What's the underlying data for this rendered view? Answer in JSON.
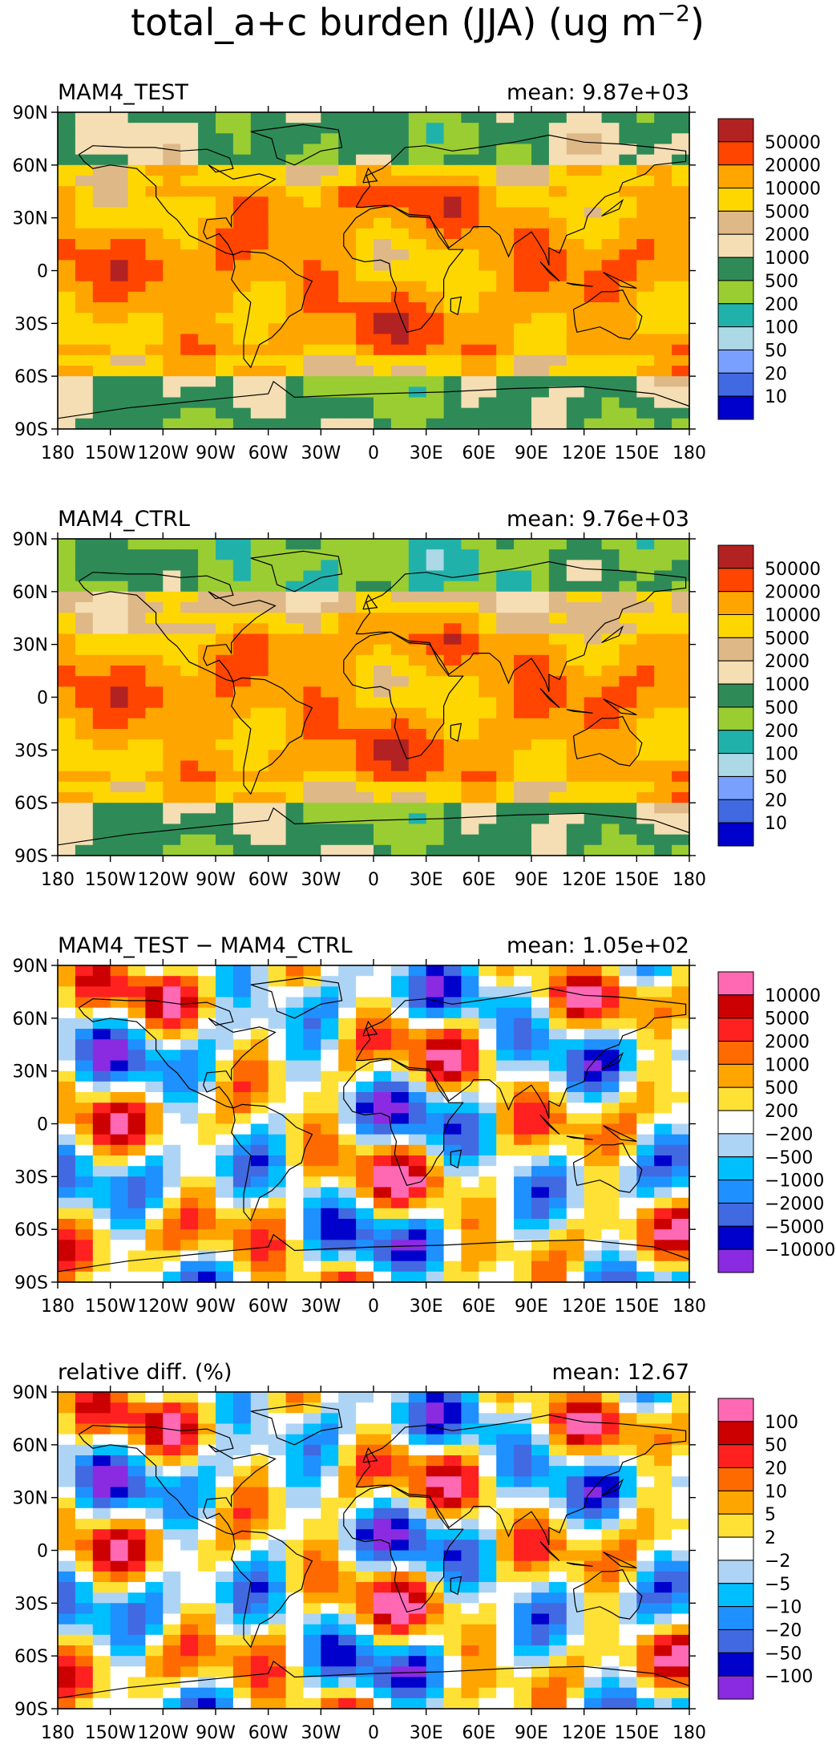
{
  "figure": {
    "title": "total_a+c burden (JJA) (ug m",
    "title_superscript": "−2",
    "title_close": ")"
  },
  "axes": {
    "lat_ticks": [
      "90N",
      "60N",
      "30N",
      "0",
      "30S",
      "60S",
      "90S"
    ],
    "lon_ticks": [
      "180",
      "150W",
      "120W",
      "90W",
      "60W",
      "30W",
      "0",
      "30E",
      "60E",
      "90E",
      "120E",
      "150E",
      "180"
    ]
  },
  "chart_data": [
    {
      "type": "heatmap",
      "title": "MAM4_TEST",
      "stat_label": "mean:",
      "stat_value": "9.87e+03",
      "xlim": [
        -180,
        180
      ],
      "ylim": [
        -90,
        90
      ],
      "colorbar": {
        "levels": [
          "50000",
          "20000",
          "10000",
          "5000",
          "2000",
          "1000",
          "500",
          "200",
          "100",
          "50",
          "20",
          "10"
        ],
        "colors": [
          "#b22222",
          "#ff4500",
          "#ffa500",
          "#ffd700",
          "#deb887",
          "#f5deb3",
          "#2e8b57",
          "#9acd32",
          "#20b2aa",
          "#add8e6",
          "#7aa0ff",
          "#4169e1",
          "#0000cd"
        ]
      },
      "field": "absolute"
    },
    {
      "type": "heatmap",
      "title": "MAM4_CTRL",
      "stat_label": "mean:",
      "stat_value": "9.76e+03",
      "xlim": [
        -180,
        180
      ],
      "ylim": [
        -90,
        90
      ],
      "colorbar": {
        "levels": [
          "50000",
          "20000",
          "10000",
          "5000",
          "2000",
          "1000",
          "500",
          "200",
          "100",
          "50",
          "20",
          "10"
        ],
        "colors": [
          "#b22222",
          "#ff4500",
          "#ffa500",
          "#ffd700",
          "#deb887",
          "#f5deb3",
          "#2e8b57",
          "#9acd32",
          "#20b2aa",
          "#add8e6",
          "#7aa0ff",
          "#4169e1",
          "#0000cd"
        ]
      },
      "field": "absolute"
    },
    {
      "type": "heatmap",
      "title": "MAM4_TEST − MAM4_CTRL",
      "stat_label": "mean:",
      "stat_value": "1.05e+02",
      "xlim": [
        -180,
        180
      ],
      "ylim": [
        -90,
        90
      ],
      "colorbar": {
        "levels": [
          "10000",
          "5000",
          "2000",
          "1000",
          "500",
          "200",
          "−200",
          "−500",
          "−1000",
          "−2000",
          "−5000",
          "−10000"
        ],
        "colors": [
          "#ff69b4",
          "#cd0000",
          "#ff2020",
          "#ff6a00",
          "#ffa500",
          "#ffe135",
          "#ffffff",
          "#aed4f5",
          "#00bfff",
          "#1e90ff",
          "#4169e1",
          "#0000cd",
          "#8a2be2"
        ]
      },
      "field": "diff"
    },
    {
      "type": "heatmap",
      "title": "relative diff. (%)",
      "stat_label": "mean:",
      "stat_value": "12.67",
      "xlim": [
        -180,
        180
      ],
      "ylim": [
        -90,
        90
      ],
      "colorbar": {
        "levels": [
          "100",
          "50",
          "20",
          "10",
          "5",
          "2",
          "−2",
          "−5",
          "−10",
          "−20",
          "−50",
          "−100"
        ],
        "colors": [
          "#ff69b4",
          "#cd0000",
          "#ff2020",
          "#ff6a00",
          "#ffa500",
          "#ffe135",
          "#ffffff",
          "#aed4f5",
          "#00bfff",
          "#1e90ff",
          "#4169e1",
          "#0000cd",
          "#8a2be2"
        ]
      },
      "field": "reldiff"
    }
  ]
}
